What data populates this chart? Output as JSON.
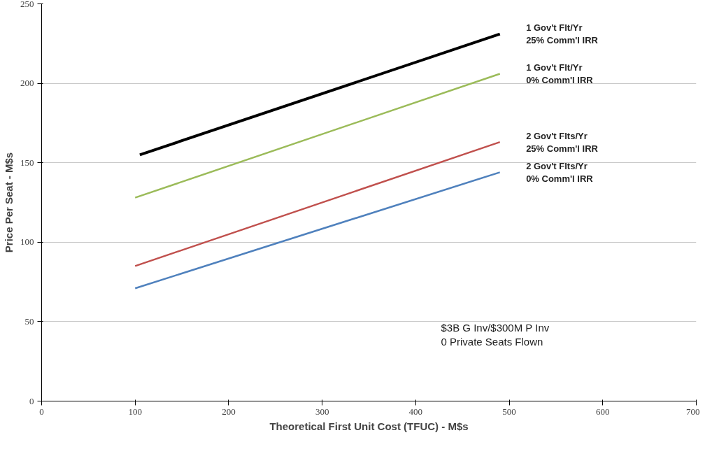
{
  "chart_data": {
    "type": "line",
    "xlabel": "Theoretical First Unit Cost (TFUC) - M$s",
    "ylabel": "Price Per Seat - M$s",
    "xlim": [
      0,
      700
    ],
    "xticks": [
      0,
      100,
      200,
      300,
      400,
      500,
      600,
      700
    ],
    "ylim": [
      0,
      250
    ],
    "yticks": [
      0,
      50,
      100,
      150,
      200,
      250
    ],
    "grid": "y",
    "legend": false,
    "marker": "none",
    "line_style": "solid",
    "series": [
      {
        "name": "1 Gov't Flt/Yr\n25% Comm'l IRR",
        "color": "#000000",
        "x": [
          105,
          490
        ],
        "values": [
          155,
          231
        ]
      },
      {
        "name": "1 Gov't Flt/Yr\n0% Comm'l IRR",
        "color": "#9bbb59",
        "x": [
          100,
          490
        ],
        "values": [
          128,
          206
        ]
      },
      {
        "name": "2 Gov't Flts/Yr\n25% Comm'l IRR",
        "color": "#c0504d",
        "x": [
          100,
          490
        ],
        "values": [
          85,
          163
        ]
      },
      {
        "name": "2 Gov't Flts/Yr\n0% Comm'l IRR",
        "color": "#4f81bd",
        "x": [
          100,
          490
        ],
        "values": [
          71,
          144
        ]
      }
    ],
    "annotations": [
      "$3B G Inv/$300M P Inv\n0 Private Seats Flown"
    ]
  }
}
